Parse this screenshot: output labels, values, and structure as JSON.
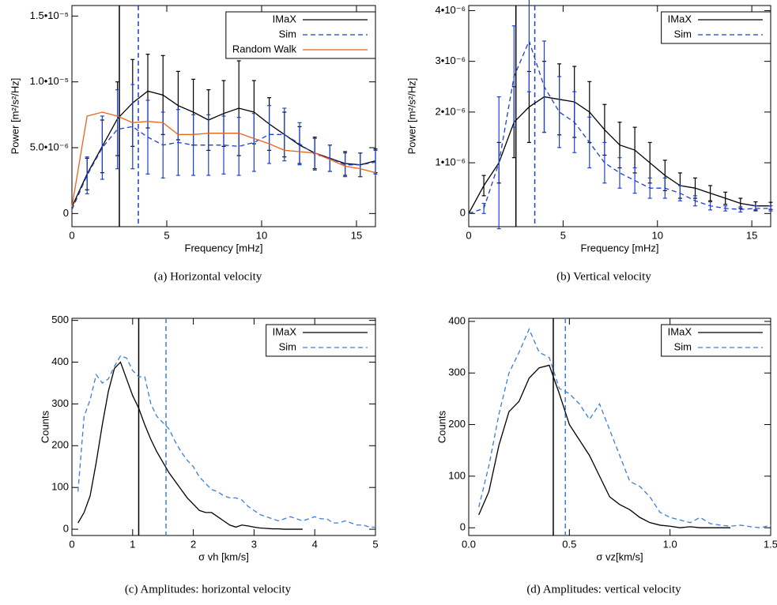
{
  "chart_data": [
    {
      "type": "line",
      "caption": "(a) Horizontal velocity",
      "xlabel": "Frequency [mHz]",
      "ylabel": "Power [m²/s²/Hz]",
      "x": [
        0,
        0.8,
        1.6,
        2.4,
        3.2,
        4.0,
        4.8,
        5.6,
        6.4,
        7.2,
        8.0,
        8.8,
        9.6,
        10.4,
        11.2,
        12.0,
        12.8,
        13.6,
        14.4,
        15.2,
        16.0
      ],
      "series": [
        {
          "name": "IMaX",
          "color": "#000000",
          "dash": false,
          "values": [
            5e-07,
            3e-06,
            5.1e-06,
            7.2e-06,
            8.4e-06,
            9.3e-06,
            9e-06,
            8.2e-06,
            7.7e-06,
            7.1e-06,
            7.6e-06,
            8e-06,
            7.7e-06,
            6.8e-06,
            6e-06,
            5.2e-06,
            4.6e-06,
            4.2e-06,
            3.8e-06,
            3.7e-06,
            4e-06
          ],
          "errors": [
            null,
            1.2e-06,
            2e-06,
            2.8e-06,
            3.3e-06,
            2.8e-06,
            3e-06,
            2.6e-06,
            2.5e-06,
            2.3e-06,
            2.5e-06,
            3.6e-06,
            2.4e-06,
            2e-06,
            1.7e-06,
            1.4e-06,
            1.2e-06,
            1e-06,
            9e-07,
            9e-07,
            9e-07
          ]
        },
        {
          "name": "Sim",
          "color": "#1f3fd0",
          "dash": true,
          "values": [
            3e-07,
            2.9e-06,
            5e-06,
            6.4e-06,
            6.6e-06,
            5.8e-06,
            5.2e-06,
            5.4e-06,
            5.2e-06,
            5.2e-06,
            5.2e-06,
            5.1e-06,
            5.4e-06,
            6e-06,
            6e-06,
            5.3e-06,
            4.5e-06,
            4.2e-06,
            3.7e-06,
            3.7e-06,
            3.9e-06
          ],
          "errors": [
            null,
            1.4e-06,
            2.4e-06,
            3e-06,
            3.2e-06,
            2.8e-06,
            2.5e-06,
            2.5e-06,
            2.3e-06,
            2.3e-06,
            2.2e-06,
            2.2e-06,
            2.2e-06,
            2.2e-06,
            2e-06,
            1.6e-06,
            1.2e-06,
            1e-06,
            9e-07,
            9e-07,
            9e-07
          ]
        },
        {
          "name": "Random Walk",
          "color": "#e8641a",
          "dash": false,
          "values": [
            5e-07,
            7.4e-06,
            7.7e-06,
            7.4e-06,
            6.9e-06,
            7e-06,
            6.9e-06,
            6e-06,
            6e-06,
            6.1e-06,
            6.1e-06,
            6.1e-06,
            5.7e-06,
            5.3e-06,
            4.8e-06,
            4.7e-06,
            4.6e-06,
            4.1e-06,
            3.6e-06,
            3.4e-06,
            3.1e-06
          ]
        }
      ],
      "vlines": [
        {
          "x": 2.5,
          "color": "#000000",
          "dash": false
        },
        {
          "x": 3.5,
          "color": "#1f3fd0",
          "dash": true
        }
      ],
      "xlim": [
        0,
        16
      ],
      "xticks": [
        0,
        5,
        10,
        15
      ],
      "ylim": [
        -1e-06,
        1.58e-05
      ],
      "yticks": [
        0,
        {
          "value": 5e-06,
          "label": "5.0•10⁻⁶"
        },
        {
          "value": 1e-05,
          "label": "1.0•10⁻⁵"
        },
        {
          "value": 1.5e-05,
          "label": "1.5•10⁻⁵"
        }
      ],
      "legend": "upper right"
    },
    {
      "type": "line",
      "caption": "(b) Vertical velocity",
      "xlabel": "Frequency [mHz]",
      "ylabel": "Power [m²/s²/Hz]",
      "x": [
        0,
        0.8,
        1.6,
        2.4,
        3.2,
        4.0,
        4.8,
        5.6,
        6.4,
        7.2,
        8.0,
        8.8,
        9.6,
        10.4,
        11.2,
        12.0,
        12.8,
        13.6,
        14.4,
        15.2,
        16.0
      ],
      "series": [
        {
          "name": "IMaX",
          "color": "#000000",
          "dash": false,
          "values": [
            0,
            5.5e-07,
            1e-06,
            1.8e-06,
            2.1e-06,
            2.3e-06,
            2.25e-06,
            2.2e-06,
            2e-06,
            1.65e-06,
            1.35e-06,
            1.25e-06,
            1e-06,
            7.5e-07,
            5.5e-07,
            5e-07,
            4e-07,
            3e-07,
            2e-07,
            1.5e-07,
            1.5e-07
          ],
          "errors": [
            null,
            2e-07,
            4e-07,
            7e-07,
            7e-07,
            7e-07,
            7e-07,
            7e-07,
            6e-07,
            5e-07,
            4.5e-07,
            4.5e-07,
            4e-07,
            3e-07,
            2.5e-07,
            2e-07,
            1.5e-07,
            1.2e-07,
            1e-07,
            8e-08,
            7e-08
          ]
        },
        {
          "name": "Sim",
          "color": "#1f3fd0",
          "dash": true,
          "values": [
            0,
            1e-07,
            1e-06,
            2.7e-06,
            3.4e-06,
            2.5e-06,
            2e-06,
            1.8e-06,
            1.4e-06,
            1e-06,
            8e-07,
            6.5e-07,
            5e-07,
            5e-07,
            4e-07,
            2.5e-07,
            1.5e-07,
            1e-07,
            8e-08,
            1e-07,
            1e-07
          ],
          "errors": [
            null,
            1e-07,
            1.3e-06,
            1e-06,
            1e-06,
            9e-07,
            7e-07,
            6e-07,
            5e-07,
            4e-07,
            3e-07,
            2.5e-07,
            2e-07,
            2e-07,
            1.5e-07,
            1e-07,
            8e-08,
            5e-08,
            5e-08,
            5e-08,
            5e-08
          ]
        }
      ],
      "vlines": [
        {
          "x": 2.5,
          "color": "#000000",
          "dash": false
        },
        {
          "x": 3.5,
          "color": "#1f3fd0",
          "dash": true
        }
      ],
      "xlim": [
        0,
        16
      ],
      "xticks": [
        0,
        5,
        10,
        15
      ],
      "ylim": [
        -2.6e-07,
        4.1e-06
      ],
      "yticks": [
        0,
        {
          "value": 1e-06,
          "label": "1•10⁻⁶"
        },
        {
          "value": 2e-06,
          "label": "2•10⁻⁶"
        },
        {
          "value": 3e-06,
          "label": "3•10⁻⁶"
        },
        {
          "value": 4e-06,
          "label": "4•10⁻⁶"
        }
      ],
      "legend": "upper right"
    },
    {
      "type": "line",
      "caption": "(c) Amplitudes: horizontal velocity",
      "xlabel": "σ vh [km/s]",
      "ylabel": "Counts",
      "x": [
        0.1,
        0.2,
        0.3,
        0.4,
        0.5,
        0.6,
        0.7,
        0.8,
        0.9,
        1.0,
        1.1,
        1.2,
        1.3,
        1.4,
        1.5,
        1.6,
        1.7,
        1.8,
        1.9,
        2.0,
        2.1,
        2.2,
        2.3,
        2.4,
        2.5,
        2.6,
        2.7,
        2.8,
        2.9,
        3.0,
        3.1,
        3.2,
        3.3,
        3.4,
        3.5,
        3.6,
        3.7,
        3.8,
        3.9,
        4.0,
        4.1,
        4.2,
        4.3,
        4.4,
        4.5,
        4.6,
        4.7,
        4.8,
        4.9,
        5.0
      ],
      "series": [
        {
          "name": "IMaX",
          "color": "#000000",
          "dash": false,
          "values": [
            15,
            40,
            80,
            160,
            250,
            330,
            385,
            400,
            360,
            320,
            290,
            250,
            215,
            185,
            160,
            135,
            115,
            95,
            75,
            60,
            45,
            40,
            40,
            30,
            20,
            10,
            5,
            10,
            8,
            5,
            3,
            2,
            1,
            1,
            0,
            0,
            0,
            0,
            null,
            null,
            null,
            null,
            null,
            null,
            null,
            null,
            null,
            null,
            null,
            null
          ]
        },
        {
          "name": "Sim",
          "color": "#3b7dd8",
          "dash": true,
          "values": [
            90,
            270,
            310,
            370,
            350,
            360,
            390,
            415,
            410,
            380,
            365,
            365,
            300,
            270,
            255,
            240,
            210,
            185,
            165,
            150,
            125,
            110,
            95,
            90,
            80,
            75,
            75,
            70,
            55,
            45,
            35,
            30,
            25,
            20,
            25,
            30,
            25,
            20,
            25,
            30,
            25,
            25,
            15,
            15,
            20,
            15,
            10,
            10,
            5,
            5
          ]
        }
      ],
      "vlines": [
        {
          "x": 1.1,
          "color": "#000000",
          "dash": false
        },
        {
          "x": 1.55,
          "color": "#3b7dd8",
          "dash": true
        }
      ],
      "xlim": [
        0,
        5
      ],
      "xticks": [
        0,
        1,
        2,
        3,
        4,
        5
      ],
      "ylim": [
        -15,
        505
      ],
      "yticks": [
        0,
        100,
        200,
        300,
        400,
        500
      ],
      "legend": "upper right"
    },
    {
      "type": "line",
      "caption": "(d) Amplitudes: vertical velocity",
      "xlabel": "σ vz[km/s]",
      "ylabel": "Counts",
      "x": [
        0.05,
        0.1,
        0.15,
        0.2,
        0.25,
        0.3,
        0.35,
        0.4,
        0.45,
        0.5,
        0.55,
        0.6,
        0.65,
        0.7,
        0.75,
        0.8,
        0.85,
        0.9,
        0.95,
        1.0,
        1.05,
        1.1,
        1.15,
        1.2,
        1.25,
        1.3,
        1.35,
        1.4,
        1.45,
        1.5
      ],
      "series": [
        {
          "name": "IMaX",
          "color": "#000000",
          "dash": false,
          "values": [
            25,
            70,
            160,
            225,
            245,
            290,
            310,
            315,
            260,
            200,
            170,
            140,
            100,
            60,
            45,
            35,
            20,
            10,
            5,
            3,
            0,
            2,
            0,
            0,
            0,
            0,
            null,
            null,
            null,
            null
          ]
        },
        {
          "name": "Sim",
          "color": "#3b7dd8",
          "dash": true,
          "values": [
            40,
            120,
            220,
            300,
            340,
            385,
            340,
            330,
            270,
            260,
            240,
            210,
            240,
            190,
            140,
            90,
            80,
            60,
            30,
            20,
            15,
            10,
            20,
            8,
            5,
            3,
            5,
            2,
            0,
            5
          ]
        }
      ],
      "vlines": [
        {
          "x": 0.42,
          "color": "#000000",
          "dash": false
        },
        {
          "x": 0.48,
          "color": "#3b7dd8",
          "dash": true
        }
      ],
      "xlim": [
        0,
        1.5
      ],
      "xticks": [
        {
          "value": 0,
          "label": "0.0"
        },
        0.5,
        {
          "value": 1,
          "label": "1.0"
        },
        1.5
      ],
      "ylim": [
        -15,
        406
      ],
      "yticks": [
        0,
        100,
        200,
        300,
        400
      ],
      "legend": "upper right"
    }
  ]
}
